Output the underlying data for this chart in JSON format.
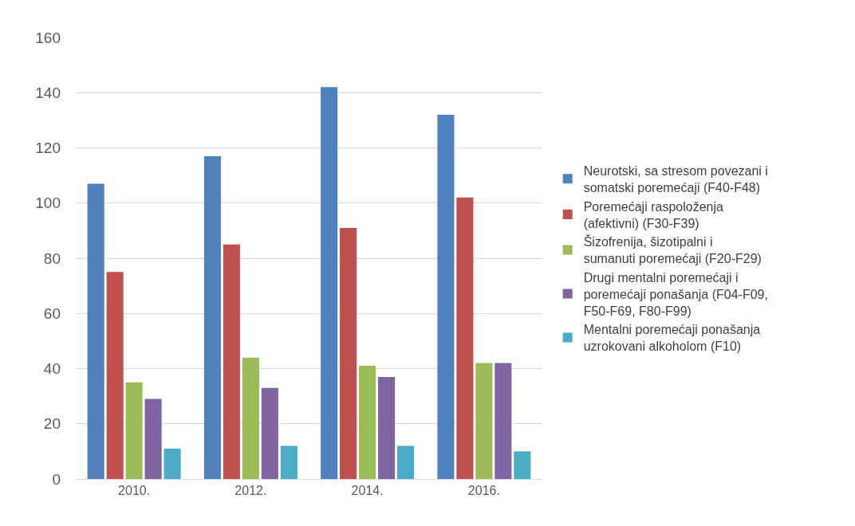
{
  "chart_data": {
    "type": "bar",
    "categories": [
      "2010.",
      "2012.",
      "2014.",
      "2016."
    ],
    "series": [
      {
        "name": "Neurotski, sa stresom povezani i somatski poremećaji (F40-F48)",
        "color": "#4f81bd",
        "values": [
          107,
          117,
          142,
          132
        ]
      },
      {
        "name": "Poremećaji raspoloženja (afektivni) (F30-F39)",
        "color": "#c0504d",
        "values": [
          75,
          85,
          91,
          102
        ]
      },
      {
        "name": "Šizofrenija, šizotipalni i sumanuti poremećaji (F20-F29)",
        "color": "#9bbb59",
        "values": [
          35,
          44,
          41,
          42
        ]
      },
      {
        "name": "Drugi mentalni poremećaji i poremećaji ponašanja (F04-F09, F50-F69, F80-F99)",
        "color": "#8064a2",
        "values": [
          29,
          33,
          37,
          42
        ]
      },
      {
        "name": "Mentalni poremećaji ponašanja uzrokovani alkoholom (F10)",
        "color": "#4bacc6",
        "values": [
          11,
          12,
          12,
          10
        ]
      }
    ],
    "ylim": [
      0,
      160
    ],
    "yticks": [
      0,
      20,
      40,
      60,
      80,
      100,
      120,
      140,
      160
    ],
    "grid": "y",
    "legend": "right"
  }
}
